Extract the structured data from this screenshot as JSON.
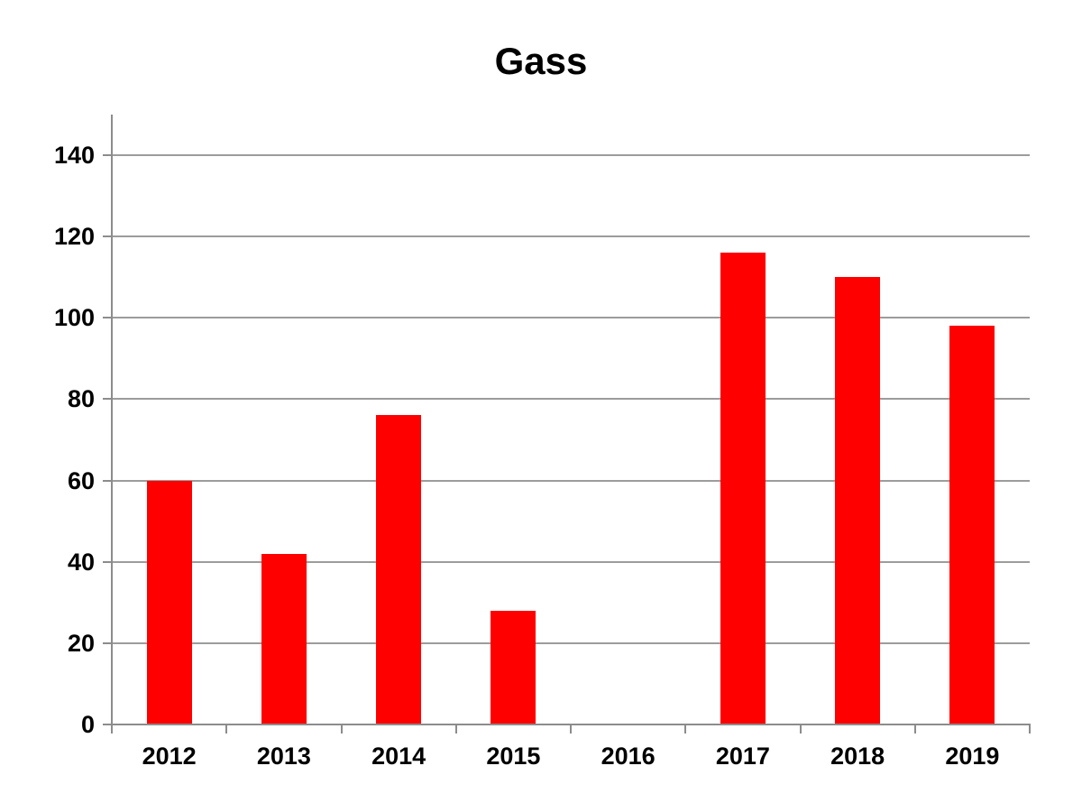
{
  "chart_data": {
    "type": "bar",
    "title": "Gass",
    "categories": [
      "2012",
      "2013",
      "2014",
      "2015",
      "2016",
      "2017",
      "2018",
      "2019"
    ],
    "values": [
      60,
      42,
      76,
      28,
      0,
      116,
      110,
      98
    ],
    "xlabel": "",
    "ylabel": "",
    "ylim": [
      0,
      150
    ],
    "yticks": [
      0,
      20,
      40,
      60,
      80,
      100,
      120,
      140
    ],
    "grid": true,
    "legend_position": "none",
    "bar_color": "#FF0000",
    "gridline_color": "#9C9C9C",
    "axis_color": "#8C8C8C",
    "text_color": "#000000",
    "background_color": "#FFFFFF"
  }
}
